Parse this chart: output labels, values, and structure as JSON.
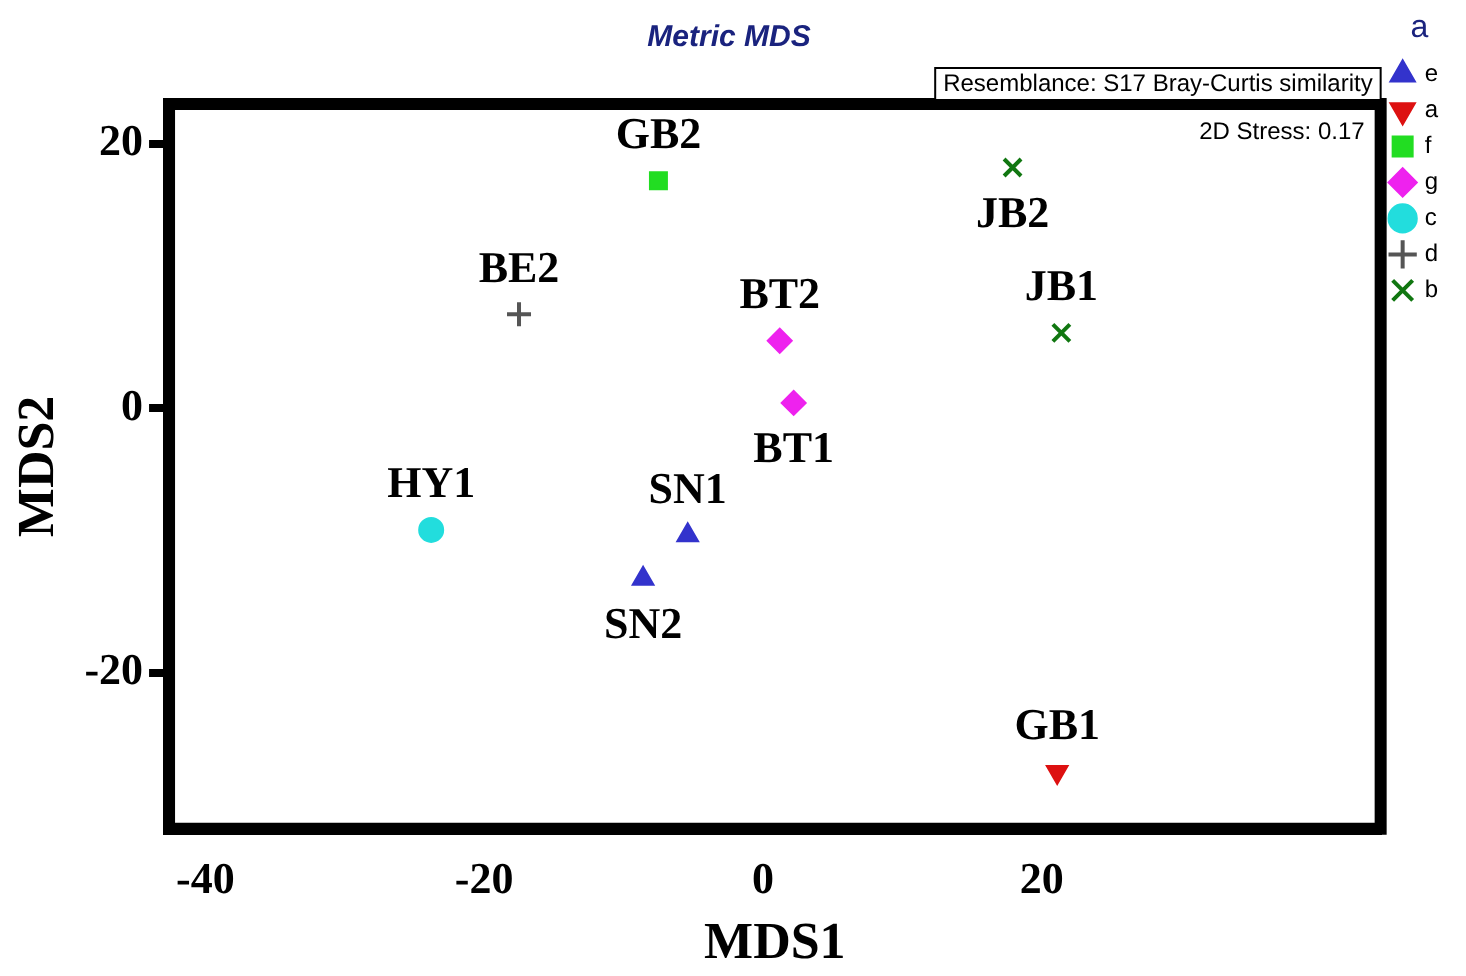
{
  "chart_data": {
    "type": "scatter",
    "title": "Metric MDS",
    "xlabel": "MDS1",
    "ylabel": "MDS2",
    "legend_title": "a",
    "legend": "right",
    "grid": false,
    "xlim": [
      -42.6,
      44.3
    ],
    "ylim": [
      -31.8,
      23
    ],
    "xticks": [
      -40,
      -20,
      0,
      20
    ],
    "yticks": [
      -20,
      0,
      20
    ],
    "series": [
      {
        "name": "e",
        "color": "#3333cc",
        "marker": "triangle",
        "x": [
          -5.4,
          -8.6
        ],
        "values": [
          -9.6,
          -12.9
        ]
      },
      {
        "name": "a",
        "color": "#dd1111",
        "marker": "triangle-down",
        "x": [
          21.1
        ],
        "values": [
          -27.5
        ]
      },
      {
        "name": "f",
        "color": "#22dd22",
        "marker": "square",
        "x": [
          -7.5
        ],
        "values": [
          17.2
        ]
      },
      {
        "name": "g",
        "color": "#ee22ee",
        "marker": "diamond",
        "x": [
          1.2,
          2.2
        ],
        "values": [
          5.1,
          0.4
        ]
      },
      {
        "name": "c",
        "color": "#22dddd",
        "marker": "circle",
        "x": [
          -23.8
        ],
        "values": [
          -9.2
        ]
      },
      {
        "name": "d",
        "color": "#555555",
        "marker": "cross",
        "x": [
          -17.5
        ],
        "values": [
          7.1
        ]
      },
      {
        "name": "b",
        "color": "#117711",
        "marker": "x",
        "x": [
          21.4,
          17.9
        ],
        "values": [
          5.7,
          18.2
        ]
      }
    ],
    "annotations": [
      "Resemblance: S17 Bray-Curtis similarity",
      "2D Stress: 0.17",
      {
        "text": "SN1",
        "x": -5.4,
        "y": -9.6
      },
      {
        "text": "SN2",
        "x": -8.6,
        "y": -12.9
      },
      {
        "text": "GB1",
        "x": 21.1,
        "y": -27.5
      },
      {
        "text": "GB2",
        "x": -7.5,
        "y": 17.2
      },
      {
        "text": "BT2",
        "x": 1.2,
        "y": 5.1
      },
      {
        "text": "BT1",
        "x": 2.2,
        "y": 0.4
      },
      {
        "text": "HY1",
        "x": -23.8,
        "y": -9.2
      },
      {
        "text": "BE2",
        "x": -17.5,
        "y": 7.1
      },
      {
        "text": "JB1",
        "x": 21.4,
        "y": 5.7
      },
      {
        "text": "JB2",
        "x": 17.9,
        "y": 18.2
      }
    ]
  }
}
